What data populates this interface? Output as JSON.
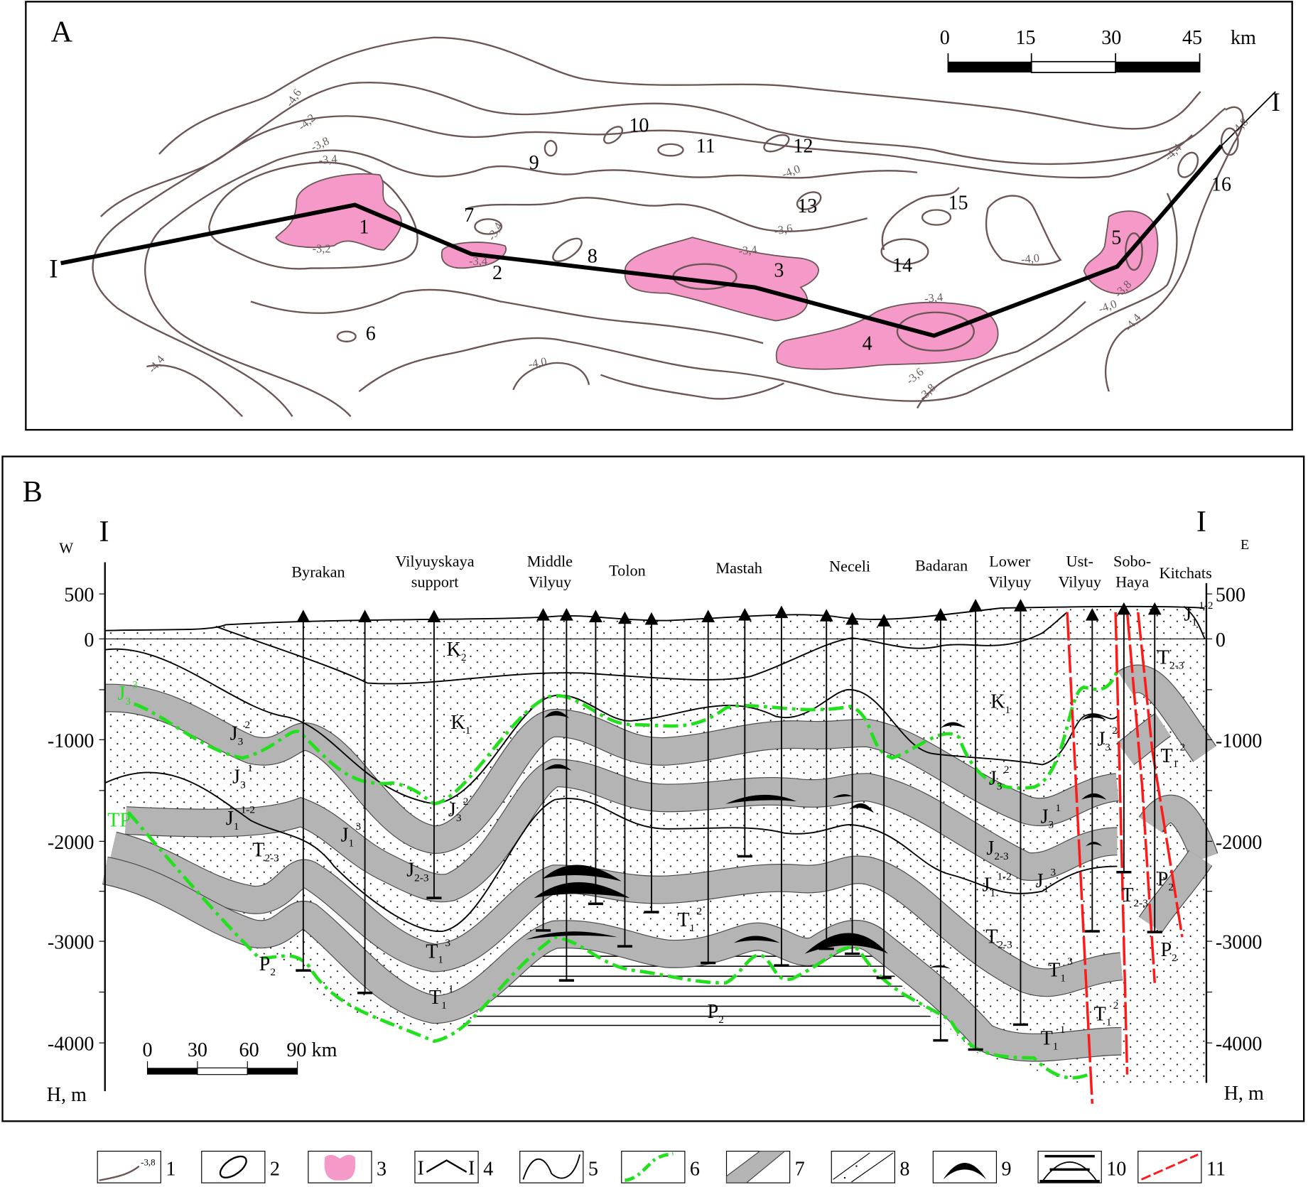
{
  "colors": {
    "contour": "#6b5555",
    "productive_area": "#f59ac8",
    "gas_oil_contact": "#22e01e",
    "band": "#b4b4b4",
    "fault": "#ff1a1a"
  },
  "panel_a": {
    "label": "A",
    "scale": {
      "ticks": [
        "0",
        "15",
        "30",
        "45"
      ],
      "unit": "km"
    },
    "section_ends": [
      "I",
      "I"
    ],
    "structures": [
      "1",
      "2",
      "3",
      "4",
      "5",
      "6",
      "7",
      "8",
      "9",
      "10",
      "11",
      "12",
      "13",
      "14",
      "15",
      "16"
    ],
    "contour_labels": [
      "-4,6",
      "-4,2",
      "-3,8",
      "-3,4",
      "-3,2",
      "-3,4",
      "-3,4",
      "-4,4",
      "-4,0",
      "-4,0",
      "-3,6",
      "-3,4",
      "-3,4",
      "-4,0",
      "-4,8",
      "-4,4",
      "-3,8",
      "-4,0",
      "-4,4",
      "-3,6",
      "-3,8"
    ]
  },
  "panel_b": {
    "label": "B",
    "west": "W",
    "east": "E",
    "section_ends": [
      "I",
      "I"
    ],
    "y_ticks": [
      "500",
      "0",
      "-1000",
      "-2000",
      "-3000",
      "-4000"
    ],
    "y_unit": "H, m",
    "wells": [
      {
        "lines": [
          "Byrakan"
        ]
      },
      {
        "lines": [
          "Vilyuyskaya",
          "support"
        ]
      },
      {
        "lines": [
          "Middle",
          "Vilyuy"
        ]
      },
      {
        "lines": [
          "Tolon"
        ]
      },
      {
        "lines": [
          "Mastah"
        ]
      },
      {
        "lines": [
          "Neceli"
        ]
      },
      {
        "lines": [
          "Badaran"
        ]
      },
      {
        "lines": [
          "Lower",
          "Vilyuy"
        ]
      },
      {
        "lines": [
          "Ust-",
          "Vilyuy"
        ]
      },
      {
        "lines": [
          "Sobo-",
          "Haya"
        ]
      },
      {
        "lines": [
          "Kitchats"
        ]
      }
    ],
    "strata": [
      {
        "base": "K",
        "sub": "2",
        "sup": ""
      },
      {
        "base": "K",
        "sub": "1",
        "sup": ""
      },
      {
        "base": "K",
        "sub": "1",
        "sup": ""
      },
      {
        "base": "J",
        "sub": "3",
        "sup": "3"
      },
      {
        "base": "J",
        "sub": "3",
        "sup": "2"
      },
      {
        "base": "J",
        "sub": "3",
        "sup": "1"
      },
      {
        "base": "J",
        "sub": "1",
        "sup": "1-2"
      },
      {
        "base": "T",
        "sub": "2-3",
        "sup": ""
      },
      {
        "base": "J",
        "sub": "1",
        "sup": "3"
      },
      {
        "base": "J",
        "sub": "2-3",
        "sup": ""
      },
      {
        "base": "J",
        "sub": "3",
        "sup": "2"
      },
      {
        "base": "T",
        "sub": "1",
        "sup": "3"
      },
      {
        "base": "T",
        "sub": "1",
        "sup": "1"
      },
      {
        "base": "P",
        "sub": "2",
        "sup": ""
      },
      {
        "base": "T",
        "sub": "1",
        "sup": "2"
      },
      {
        "base": "P",
        "sub": "2",
        "sup": ""
      },
      {
        "base": "J",
        "sub": "3",
        "sup": "2"
      },
      {
        "base": "J",
        "sub": "3",
        "sup": "1"
      },
      {
        "base": "J",
        "sub": "2-3",
        "sup": ""
      },
      {
        "base": "J",
        "sub": "1",
        "sup": "1-2"
      },
      {
        "base": "J",
        "sub": "1",
        "sup": "3"
      },
      {
        "base": "T",
        "sub": "2-3",
        "sup": ""
      },
      {
        "base": "T",
        "sub": "1",
        "sup": "3"
      },
      {
        "base": "T",
        "sub": "1",
        "sup": "2"
      },
      {
        "base": "T",
        "sub": "1",
        "sup": "1"
      },
      {
        "base": "J",
        "sub": "3",
        "sup": "2"
      },
      {
        "base": "T",
        "sub": "2-3",
        "sup": ""
      },
      {
        "base": "T",
        "sub": "1",
        "sup": "2"
      },
      {
        "base": "P",
        "sub": "2",
        "sup": ""
      },
      {
        "base": "T",
        "sub": "2-3",
        "sup": ""
      },
      {
        "base": "P",
        "sub": "2",
        "sup": ""
      },
      {
        "base": "J",
        "sub": "1",
        "sup": "1-2"
      },
      {
        "base": "TP",
        "sub": "",
        "sup": ""
      }
    ],
    "scale": {
      "ticks": [
        "0",
        "30",
        "60",
        "90 km"
      ]
    }
  },
  "legend": [
    {
      "num": "1",
      "symbol": "contour-line",
      "sample_label": "-3,8"
    },
    {
      "num": "2",
      "symbol": "closed-contour"
    },
    {
      "num": "3",
      "symbol": "pink-area"
    },
    {
      "num": "4",
      "symbol": "section-line",
      "sample_label": "I"
    },
    {
      "num": "5",
      "symbol": "boundary-line"
    },
    {
      "num": "6",
      "symbol": "green-dash-dot-line"
    },
    {
      "num": "7",
      "symbol": "gray-band"
    },
    {
      "num": "8",
      "symbol": "dotted-layer"
    },
    {
      "num": "9",
      "symbol": "black-lens"
    },
    {
      "num": "10",
      "symbol": "hatched-dome"
    },
    {
      "num": "11",
      "symbol": "red-dashed-fault"
    }
  ]
}
